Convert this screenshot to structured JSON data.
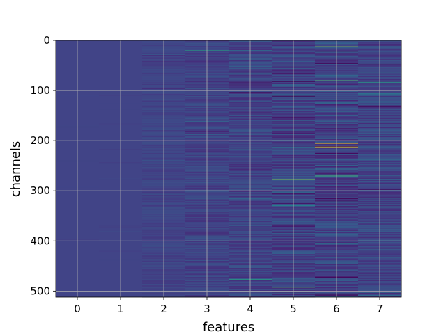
{
  "chart_data": {
    "type": "heatmap",
    "title": "",
    "xlabel": "features",
    "ylabel": "channels",
    "x_ticks": [
      "0",
      "1",
      "2",
      "3",
      "4",
      "5",
      "6",
      "7"
    ],
    "y_ticks": [
      "0",
      "100",
      "200",
      "300",
      "400",
      "500"
    ],
    "x_range": [
      -0.5,
      7.5
    ],
    "y_range": [
      512,
      0
    ],
    "n_features": 8,
    "n_channels": 512,
    "grid": true,
    "colormap": "viridis",
    "feature_variability": [
      0.03,
      0.05,
      0.25,
      0.45,
      0.55,
      0.7,
      0.85,
      0.6
    ],
    "highlights": [
      {
        "feature": 3,
        "channel": 322,
        "level": 0.85
      },
      {
        "feature": 3,
        "channel": 20,
        "level": 0.6
      },
      {
        "feature": 4,
        "channel": 218,
        "level": 0.7
      },
      {
        "feature": 4,
        "channel": 476,
        "level": 0.6
      },
      {
        "feature": 5,
        "channel": 277,
        "level": 0.85
      },
      {
        "feature": 5,
        "channel": 492,
        "level": 0.7
      },
      {
        "feature": 6,
        "channel": 205,
        "level": 1.0
      },
      {
        "feature": 6,
        "channel": 212,
        "level": 0.95
      },
      {
        "feature": 6,
        "channel": 12,
        "level": 0.8
      },
      {
        "feature": 6,
        "channel": 80,
        "level": 0.75
      },
      {
        "feature": 6,
        "channel": 270,
        "level": 0.7
      },
      {
        "feature": 7,
        "channel": 83,
        "level": 0.6
      }
    ]
  }
}
